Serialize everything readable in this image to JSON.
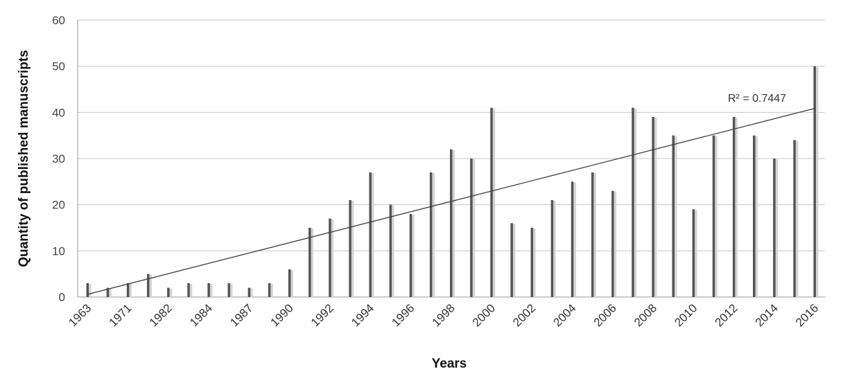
{
  "chart_data": {
    "type": "bar",
    "xlabel": "Years",
    "ylabel": "Quantity of published manuscripts",
    "ylim": [
      0,
      60
    ],
    "y_ticks": [
      0,
      10,
      20,
      30,
      40,
      50,
      60
    ],
    "grid": true,
    "trendline": {
      "type": "linear",
      "label": "R² = 0.7447"
    },
    "categories": [
      "1963",
      "",
      "1971",
      "",
      "1982",
      "",
      "1984",
      "",
      "1987",
      "",
      "1990",
      "",
      "1992",
      "",
      "1994",
      "",
      "1996",
      "",
      "1998",
      "",
      "2000",
      "",
      "2002",
      "",
      "2004",
      "",
      "2006",
      "",
      "2008",
      "",
      "2010",
      "",
      "2012",
      "",
      "2014",
      "",
      "2016"
    ],
    "values": [
      3,
      2,
      3,
      5,
      2,
      3,
      3,
      3,
      2,
      3,
      6,
      15,
      17,
      21,
      27,
      20,
      18,
      27,
      32,
      30,
      41,
      16,
      15,
      21,
      25,
      27,
      23,
      41,
      39,
      35,
      19,
      35,
      39,
      35,
      30,
      34,
      50
    ],
    "colors": {
      "bar": "#555555",
      "bar_shadow": "#d4d4d4",
      "grid": "#c8c8c8",
      "trend": "#3c3c3c"
    }
  }
}
